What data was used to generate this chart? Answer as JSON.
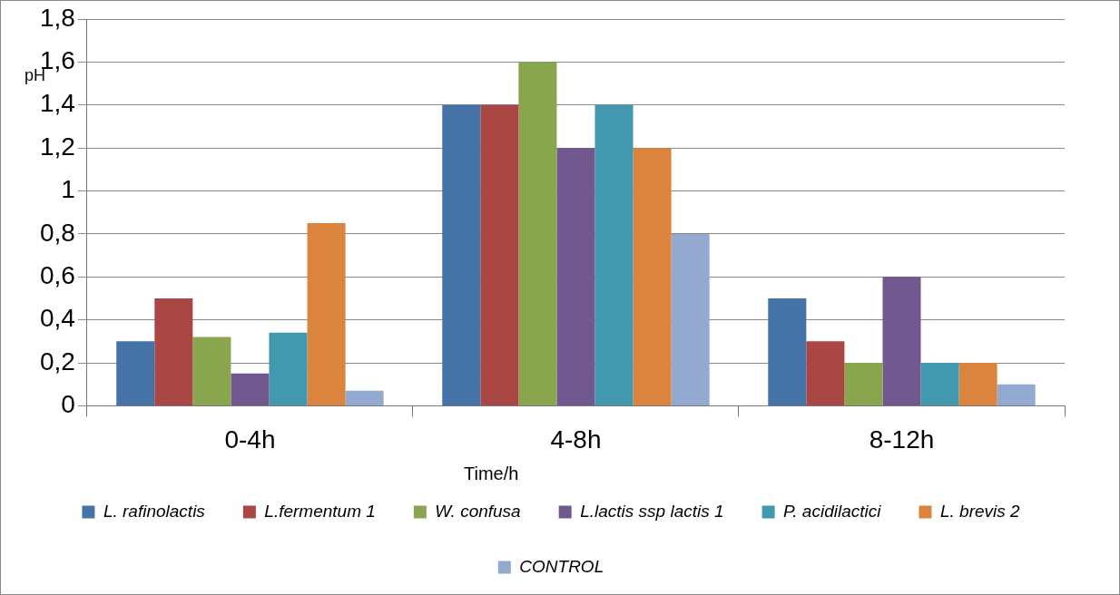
{
  "chart_data": {
    "type": "bar",
    "xlabel": "Time/h",
    "ylabel": "pH",
    "categories": [
      "0-4h",
      "4-8h",
      "8-12h"
    ],
    "ylim": [
      0,
      1.8
    ],
    "yticks": [
      {
        "value": 0,
        "label": "0"
      },
      {
        "value": 0.2,
        "label": "0,2"
      },
      {
        "value": 0.4,
        "label": "0,4"
      },
      {
        "value": 0.6,
        "label": "0,6"
      },
      {
        "value": 0.8,
        "label": "0,8"
      },
      {
        "value": 1,
        "label": "1"
      },
      {
        "value": 1.2,
        "label": "1,2"
      },
      {
        "value": 1.4,
        "label": "1,4"
      },
      {
        "value": 1.6,
        "label": "1,6"
      },
      {
        "value": 1.8,
        "label": "1,8"
      }
    ],
    "grid": "y",
    "legend": "bottom",
    "series": [
      {
        "name": "L. rafinolactis",
        "color": "#4572a7",
        "values": [
          0.3,
          1.4,
          0.5
        ]
      },
      {
        "name": "L.fermentum 1",
        "color": "#aa4643",
        "values": [
          0.5,
          1.4,
          0.3
        ]
      },
      {
        "name": "W. confusa",
        "color": "#89a54e",
        "values": [
          0.32,
          1.6,
          0.2
        ]
      },
      {
        "name": "L.lactis ssp lactis 1",
        "color": "#71588f",
        "values": [
          0.15,
          1.2,
          0.6
        ]
      },
      {
        "name": "P. acidilactici",
        "color": "#4198af",
        "values": [
          0.34,
          1.4,
          0.2
        ]
      },
      {
        "name": "L. brevis 2",
        "color": "#db843d",
        "values": [
          0.85,
          1.2,
          0.2
        ]
      },
      {
        "name": "CONTROL",
        "color": "#93a9cf",
        "values": [
          0.07,
          0.8,
          0.1
        ]
      }
    ]
  }
}
